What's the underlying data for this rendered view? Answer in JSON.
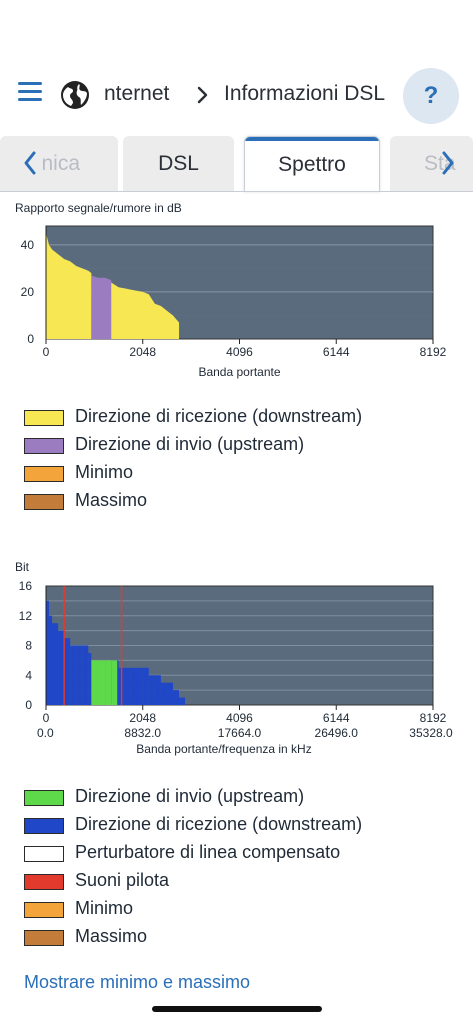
{
  "header": {
    "parent_crumb": "nternet",
    "current_crumb": "Informazioni DSL",
    "help_label": "?"
  },
  "tabs": [
    {
      "label": "nica",
      "state": "partial-left"
    },
    {
      "label": "DSL",
      "state": "inactive"
    },
    {
      "label": "Spettro",
      "state": "active"
    },
    {
      "label": "Sta",
      "state": "partial-right"
    }
  ],
  "icons": {
    "menu": "hamburger-menu-icon",
    "globe": "globe-icon",
    "breadcrumb_separator": "chevron-right-icon",
    "tab_prev": "chevron-left-icon",
    "tab_next": "chevron-right-icon"
  },
  "colors": {
    "accent": "#2a6fb8",
    "plot_background": "#5b6b7e",
    "downstream_snr": "#f7e752",
    "upstream_snr": "#9b7cc1",
    "bits_downstream": "#1f47c8",
    "bits_upstream": "#5ed94a",
    "pilot": "#e23a2c",
    "minimum": "#f3a43b",
    "maximum": "#c47c3b",
    "compensated": "#ffffff"
  },
  "chart_snr": {
    "label": "Rapporto segnale/rumore in dB",
    "xlabel": "Banda portante",
    "xticks": [
      "0",
      "2048",
      "4096",
      "6144",
      "8192"
    ],
    "yticks": [
      "0",
      "20",
      "40"
    ]
  },
  "legend_snr": [
    {
      "label": "Direzione di ricezione (downstream)",
      "color": "#f7e752"
    },
    {
      "label": "Direzione di invio  (upstream)",
      "color": "#9b7cc1"
    },
    {
      "label": "Minimo",
      "color": "#f3a43b"
    },
    {
      "label": "Massimo",
      "color": "#c47c3b"
    }
  ],
  "chart_bits": {
    "label": "Bit",
    "xlabel": "Banda portante/frequenza in kHz",
    "xticks": [
      "0",
      "2048",
      "4096",
      "6144",
      "8192"
    ],
    "xticks_freq": [
      "0.0",
      "8832.0",
      "17664.0",
      "26496.0",
      "35328.0"
    ],
    "yticks": [
      "0",
      "4",
      "8",
      "12",
      "16"
    ]
  },
  "legend_bits": [
    {
      "label": "Direzione di invio  (upstream)",
      "color": "#5ed94a"
    },
    {
      "label": "Direzione di ricezione (downstream)",
      "color": "#1f47c8"
    },
    {
      "label": "Perturbatore di linea compensato",
      "color": "#ffffff"
    },
    {
      "label": "Suoni pilota",
      "color": "#e23a2c"
    },
    {
      "label": "Minimo",
      "color": "#f3a43b"
    },
    {
      "label": "Massimo",
      "color": "#c47c3b"
    }
  ],
  "footer": {
    "link_label": "Mostrare minimo e massimo"
  },
  "chart_data": [
    {
      "type": "area",
      "title": "Rapporto segnale/rumore in dB",
      "xlabel": "Banda portante",
      "ylabel": "dB",
      "xlim": [
        0,
        8192
      ],
      "ylim": [
        0,
        48
      ],
      "series": [
        {
          "name": "Direzione di ricezione (downstream)",
          "x": [
            0,
            64,
            128,
            256,
            384,
            512,
            640,
            768,
            896,
            960
          ],
          "y": [
            45,
            40,
            38,
            36,
            34,
            33,
            31,
            30,
            29,
            28
          ]
        },
        {
          "name": "Direzione di invio  (upstream)",
          "x": [
            960,
            1100,
            1250,
            1380
          ],
          "y": [
            27,
            26,
            26,
            25
          ]
        },
        {
          "name": "Direzione di ricezione (downstream)",
          "x": [
            1380,
            1536,
            1792,
            2048,
            2176,
            2304,
            2432,
            2560,
            2688,
            2816
          ],
          "y": [
            24,
            22,
            21,
            20,
            19,
            15,
            14,
            12,
            10,
            7
          ]
        }
      ]
    },
    {
      "type": "bar",
      "title": "Bit",
      "xlabel": "Banda portante/frequenza in kHz",
      "xlim": [
        0,
        8192
      ],
      "ylim": [
        0,
        16
      ],
      "series": [
        {
          "name": "Direzione di ricezione (downstream)",
          "x": [
            0,
            64,
            128,
            256,
            384,
            512,
            640,
            768,
            896,
            1380,
            1536,
            1792,
            2048,
            2176,
            2304,
            2432,
            2560,
            2688,
            2816
          ],
          "y": [
            14,
            12,
            11,
            10,
            9,
            8,
            8,
            8,
            7,
            6,
            5,
            5,
            5,
            4,
            4,
            3,
            3,
            2,
            1
          ]
        },
        {
          "name": "Direzione di invio  (upstream)",
          "x": [
            960,
            1100,
            1250,
            1380
          ],
          "y": [
            6,
            6,
            6,
            6
          ]
        },
        {
          "name": "Suoni pilota",
          "x": [
            384,
            1600
          ],
          "y": [
            16,
            16
          ]
        }
      ]
    }
  ]
}
